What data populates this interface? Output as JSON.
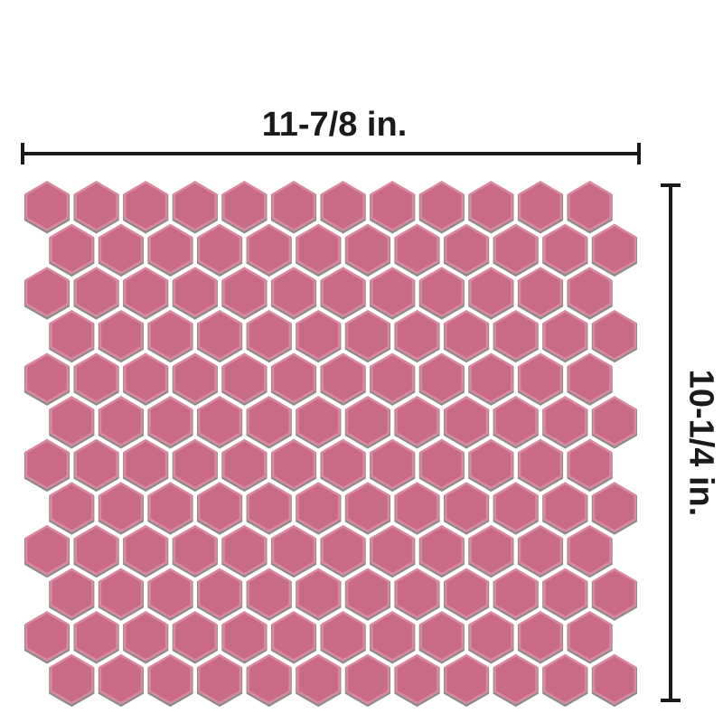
{
  "dimensions": {
    "width_label": "11-7/8 in.",
    "height_label": "10-1/4 in."
  },
  "tile_sheet": {
    "shape": "hexagon",
    "rows": 12,
    "columns": 12,
    "tile_color": "#c96a86",
    "tile_highlight": "#d98aa0",
    "grout_color": "#8e8a8a"
  },
  "colors": {
    "dimension_line": "#1a1a1a"
  }
}
